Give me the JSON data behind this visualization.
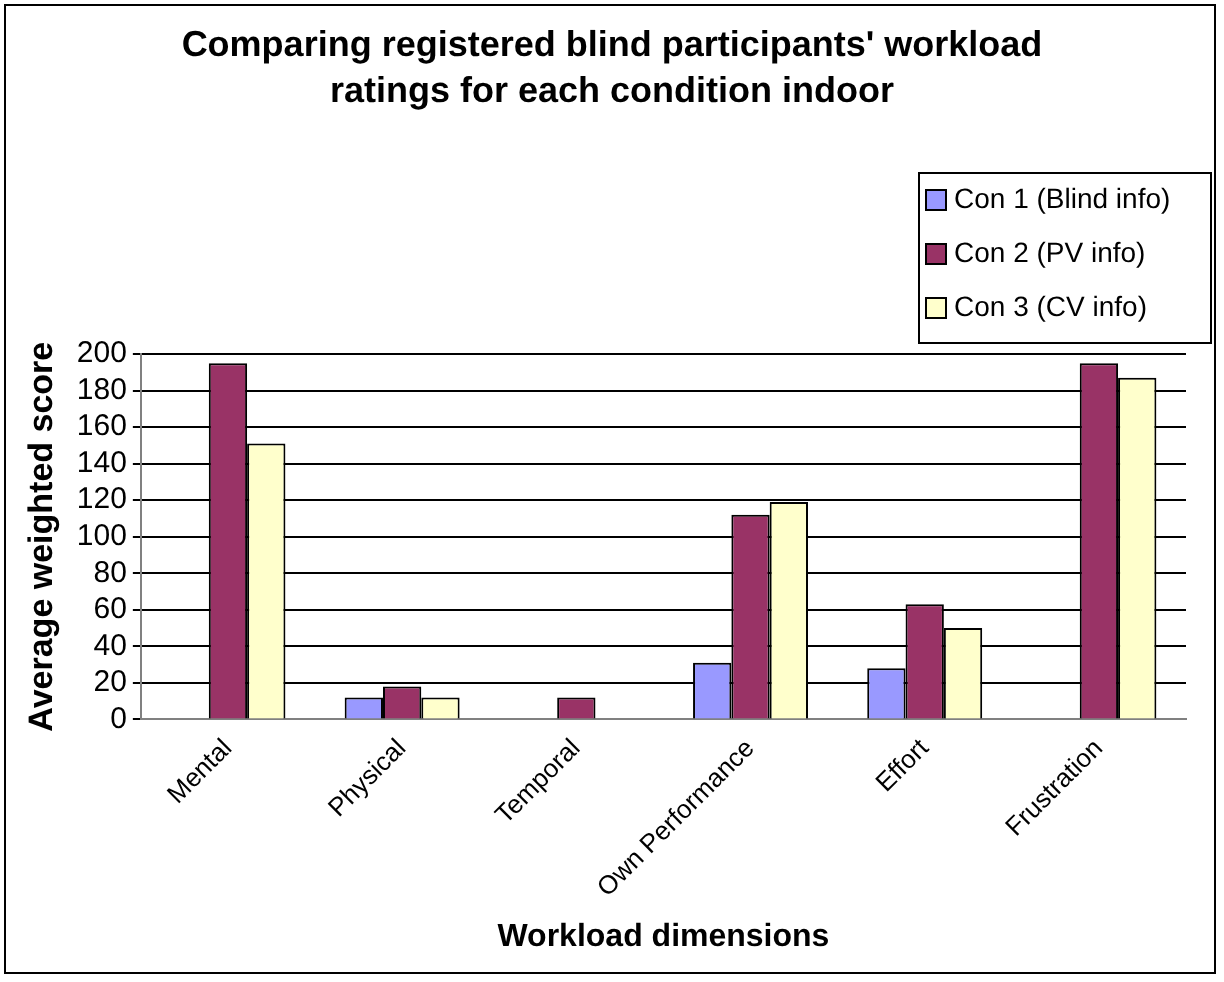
{
  "chart_data": {
    "type": "bar",
    "title": "Comparing registered blind participants' workload ratings for each condition indoor",
    "xlabel": "Workload dimensions",
    "ylabel": "Average weighted score",
    "categories": [
      "Mental",
      "Physical",
      "Temporal",
      "Own Performance",
      "Effort",
      "Frustration"
    ],
    "series": [
      {
        "name": "Con 1 (Blind info)",
        "color": "#9999ff",
        "values": [
          0,
          12,
          0,
          31,
          28,
          0
        ]
      },
      {
        "name": "Con 2 (PV info)",
        "color": "#993366",
        "values": [
          195,
          18,
          12,
          112,
          63,
          195
        ]
      },
      {
        "name": "Con 3 (CV info)",
        "color": "#ffffcc",
        "values": [
          151,
          12,
          0,
          119,
          50,
          187
        ]
      }
    ],
    "ylim": [
      0,
      200
    ],
    "yticks": [
      0,
      20,
      40,
      60,
      80,
      100,
      120,
      140,
      160,
      180,
      200
    ],
    "grid": "y",
    "legend": "top right"
  }
}
